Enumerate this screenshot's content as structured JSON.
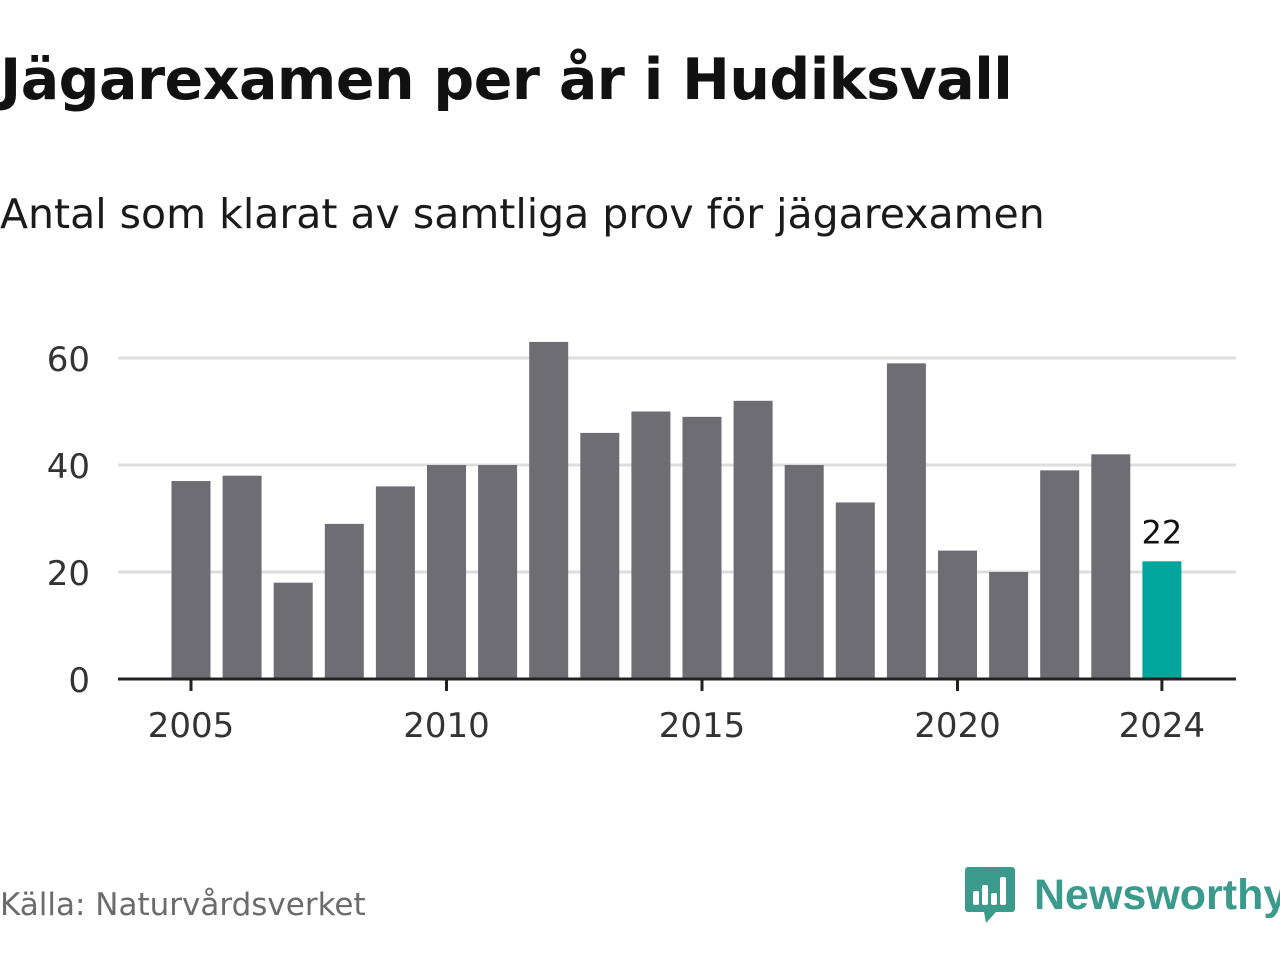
{
  "title": "Jägarexamen per år i Hudiksvall",
  "subtitle": "Antal som klarat av samtliga prov för jägarexamen",
  "source": "Källa: Naturvårdsverket",
  "brand": {
    "name": "Newsworthy",
    "icon": "newsworthy-logo-icon",
    "color": "#3a9a8c"
  },
  "colors": {
    "bar": "#6e6d73",
    "highlight": "#00a69c",
    "grid": "#dddddd",
    "axis": "#222222",
    "tick_text": "#333333"
  },
  "chart_data": {
    "type": "bar",
    "categories": [
      2005,
      2006,
      2007,
      2008,
      2009,
      2010,
      2011,
      2012,
      2013,
      2014,
      2015,
      2016,
      2017,
      2018,
      2019,
      2020,
      2021,
      2022,
      2023,
      2024
    ],
    "values": [
      37,
      38,
      18,
      29,
      36,
      40,
      40,
      63,
      46,
      50,
      49,
      52,
      40,
      33,
      59,
      24,
      20,
      39,
      42,
      22
    ],
    "highlight_category": 2024,
    "highlight_label": "22",
    "ylim": [
      0,
      65
    ],
    "y_ticks": [
      0,
      20,
      40,
      60
    ],
    "x_tick_labels": [
      2005,
      2010,
      2015,
      2020,
      2024
    ],
    "grid": true,
    "xlabel": "",
    "ylabel": ""
  }
}
